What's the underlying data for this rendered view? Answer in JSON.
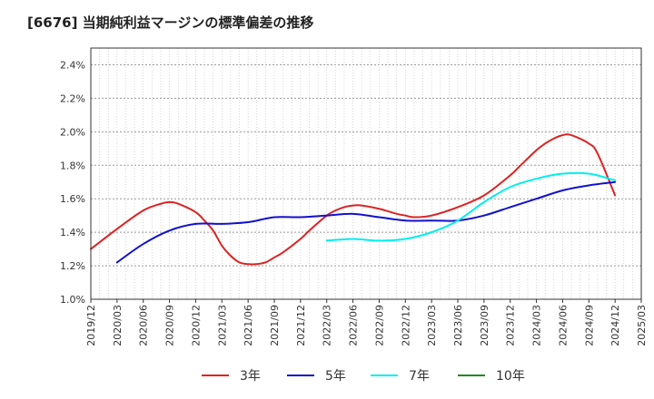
{
  "title": "[6676]  当期純利益マージンの標準偏差の推移",
  "chart_data": {
    "type": "line",
    "x_ticks": [
      "2019/12",
      "2020/03",
      "2020/06",
      "2020/09",
      "2020/12",
      "2021/03",
      "2021/06",
      "2021/09",
      "2021/12",
      "2022/03",
      "2022/06",
      "2022/09",
      "2022/12",
      "2023/03",
      "2023/06",
      "2023/09",
      "2023/12",
      "2024/03",
      "2024/06",
      "2024/09",
      "2024/12",
      "2025/03"
    ],
    "y_ticks": [
      "1.0%",
      "1.2%",
      "1.4%",
      "1.6%",
      "1.8%",
      "2.0%",
      "2.2%",
      "2.4%"
    ],
    "ylim": [
      1.0,
      2.5
    ],
    "grid": true,
    "legend_position": "bottom",
    "series": [
      {
        "name": "3年",
        "color": "#dd2222",
        "x": [
          "2019/12",
          "2020/03",
          "2020/06",
          "2020/08",
          "2020/09",
          "2020/10",
          "2020/12",
          "2021/01",
          "2021/02",
          "2021/03",
          "2021/04",
          "2021/05",
          "2021/06",
          "2021/07",
          "2021/08",
          "2021/09",
          "2021/10",
          "2021/12",
          "2022/01",
          "2022/03",
          "2022/04",
          "2022/05",
          "2022/06",
          "2022/07",
          "2022/09",
          "2022/11",
          "2022/12",
          "2023/01",
          "2023/03",
          "2023/06",
          "2023/09",
          "2023/12",
          "2024/01",
          "2024/03",
          "2024/04",
          "2024/05",
          "2024/06",
          "2024/07",
          "2024/09",
          "2024/10",
          "2024/12"
        ],
        "values": [
          1.3,
          1.42,
          1.53,
          1.57,
          1.58,
          1.57,
          1.52,
          1.47,
          1.41,
          1.32,
          1.26,
          1.22,
          1.21,
          1.21,
          1.22,
          1.25,
          1.28,
          1.36,
          1.41,
          1.5,
          1.53,
          1.55,
          1.56,
          1.56,
          1.54,
          1.51,
          1.5,
          1.49,
          1.5,
          1.55,
          1.62,
          1.74,
          1.79,
          1.89,
          1.93,
          1.96,
          1.98,
          1.98,
          1.93,
          1.87,
          1.62
        ]
      },
      {
        "name": "5年",
        "color": "#1111cc",
        "x": [
          "2020/03",
          "2020/06",
          "2020/09",
          "2020/12",
          "2021/03",
          "2021/06",
          "2021/09",
          "2021/12",
          "2022/03",
          "2022/06",
          "2022/09",
          "2022/12",
          "2023/03",
          "2023/06",
          "2023/09",
          "2023/12",
          "2024/03",
          "2024/06",
          "2024/09",
          "2024/12"
        ],
        "values": [
          1.22,
          1.33,
          1.41,
          1.45,
          1.45,
          1.46,
          1.49,
          1.49,
          1.5,
          1.51,
          1.49,
          1.47,
          1.47,
          1.47,
          1.5,
          1.55,
          1.6,
          1.65,
          1.68,
          1.7
        ]
      },
      {
        "name": "7年",
        "color": "#00eeee",
        "x": [
          "2022/03",
          "2022/06",
          "2022/09",
          "2022/12",
          "2023/03",
          "2023/06",
          "2023/09",
          "2023/12",
          "2024/03",
          "2024/06",
          "2024/09",
          "2024/12"
        ],
        "values": [
          1.35,
          1.36,
          1.35,
          1.36,
          1.4,
          1.47,
          1.58,
          1.67,
          1.72,
          1.75,
          1.75,
          1.71
        ]
      },
      {
        "name": "10年",
        "color": "#228822",
        "x": [],
        "values": []
      }
    ]
  }
}
